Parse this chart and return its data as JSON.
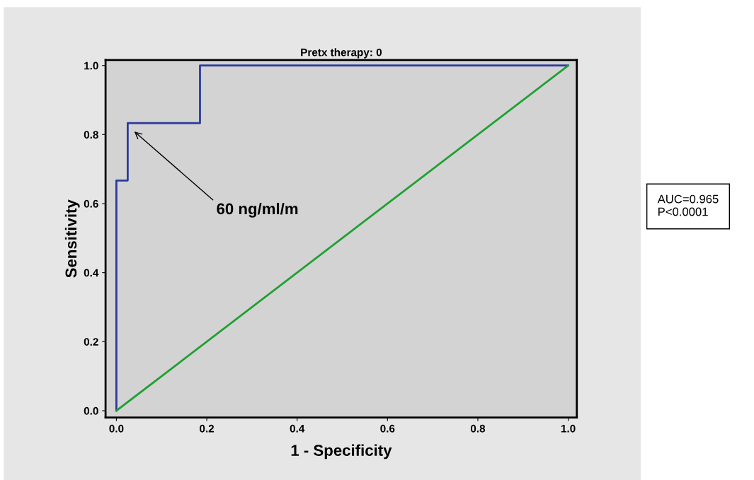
{
  "chart_data": {
    "type": "line",
    "title": "Pretx therapy: 0",
    "xlabel": "1 - Specificity",
    "ylabel": "Sensitivity",
    "series": [
      {
        "color": "#2b3a9c",
        "x": [
          0,
          0,
          0.025,
          0.025,
          0.185,
          0.185,
          1
        ],
        "values": [
          0,
          0.667,
          0.667,
          0.833,
          0.833,
          1,
          1
        ]
      },
      {
        "color": "#1fa032",
        "x": [
          0,
          1
        ],
        "values": [
          0,
          1
        ]
      }
    ],
    "xlim": [
      -0.024,
      1.019
    ],
    "ylim": [
      -0.02,
      1.016
    ],
    "xticks": [
      {
        "value": 0,
        "label": "0.0"
      },
      {
        "value": 0.2,
        "label": "0.2"
      },
      {
        "value": 0.4,
        "label": "0.4"
      },
      {
        "value": 0.6,
        "label": "0.6"
      },
      {
        "value": 0.8,
        "label": "0.8"
      },
      {
        "value": 1,
        "label": "1.0"
      }
    ],
    "yticks": [
      {
        "value": 0,
        "label": "0.0"
      },
      {
        "value": 0.2,
        "label": "0.2"
      },
      {
        "value": 0.4,
        "label": "0.4"
      },
      {
        "value": 0.6,
        "label": "0.6"
      },
      {
        "value": 0.8,
        "label": "0.8"
      },
      {
        "value": 1,
        "label": "1.0"
      }
    ],
    "annotations": [
      "60 ng/ml/m",
      "AUC=0.965\nP<0.0001"
    ],
    "grid": false,
    "legend": false,
    "marker": "none",
    "line_style": "solid"
  }
}
